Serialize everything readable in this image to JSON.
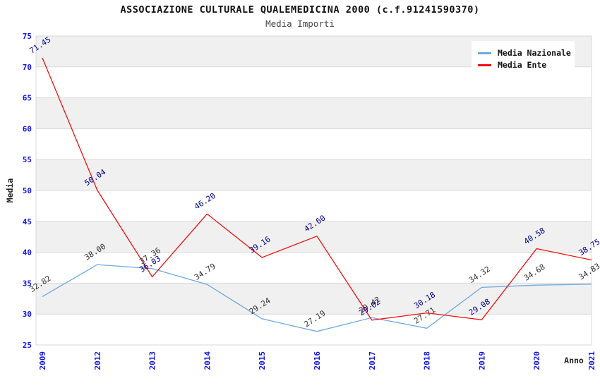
{
  "header": {
    "title": "ASSOCIAZIONE CULTURALE QUALEMEDICINA 2000 (c.f.91241590370)",
    "subtitle": "Media Importi"
  },
  "chart_data": {
    "type": "line",
    "title": "ASSOCIAZIONE CULTURALE QUALEMEDICINA 2000 (c.f.91241590370)",
    "subtitle": "Media Importi",
    "xlabel": "Anno",
    "ylabel": "Media",
    "categories": [
      "2009",
      "2012",
      "2013",
      "2014",
      "2015",
      "2016",
      "2017",
      "2018",
      "2019",
      "2020",
      "2021"
    ],
    "series": [
      {
        "name": "Media Nazionale",
        "color": "#6fa8dc",
        "label_color": "#333333",
        "values": [
          32.82,
          38.0,
          37.36,
          34.79,
          29.24,
          27.19,
          29.42,
          27.71,
          34.32,
          34.68,
          34.83
        ]
      },
      {
        "name": "Media Ente",
        "color": "#ee1111",
        "label_color": "#00008b",
        "values": [
          71.45,
          50.04,
          36.03,
          46.2,
          39.16,
          42.6,
          29.02,
          30.18,
          29.08,
          40.58,
          38.75
        ]
      }
    ],
    "ylim": [
      25,
      75
    ],
    "y_ticks": [
      25,
      30,
      35,
      40,
      45,
      50,
      55,
      60,
      65,
      70,
      75
    ],
    "label_decimals": 2,
    "tick_label_color": "#1515dd",
    "grid_color": "#d9d9d9",
    "band_color": "#f0f0f0",
    "plot_background": "#ffffff",
    "legend_position": "top-right",
    "grid": true
  }
}
